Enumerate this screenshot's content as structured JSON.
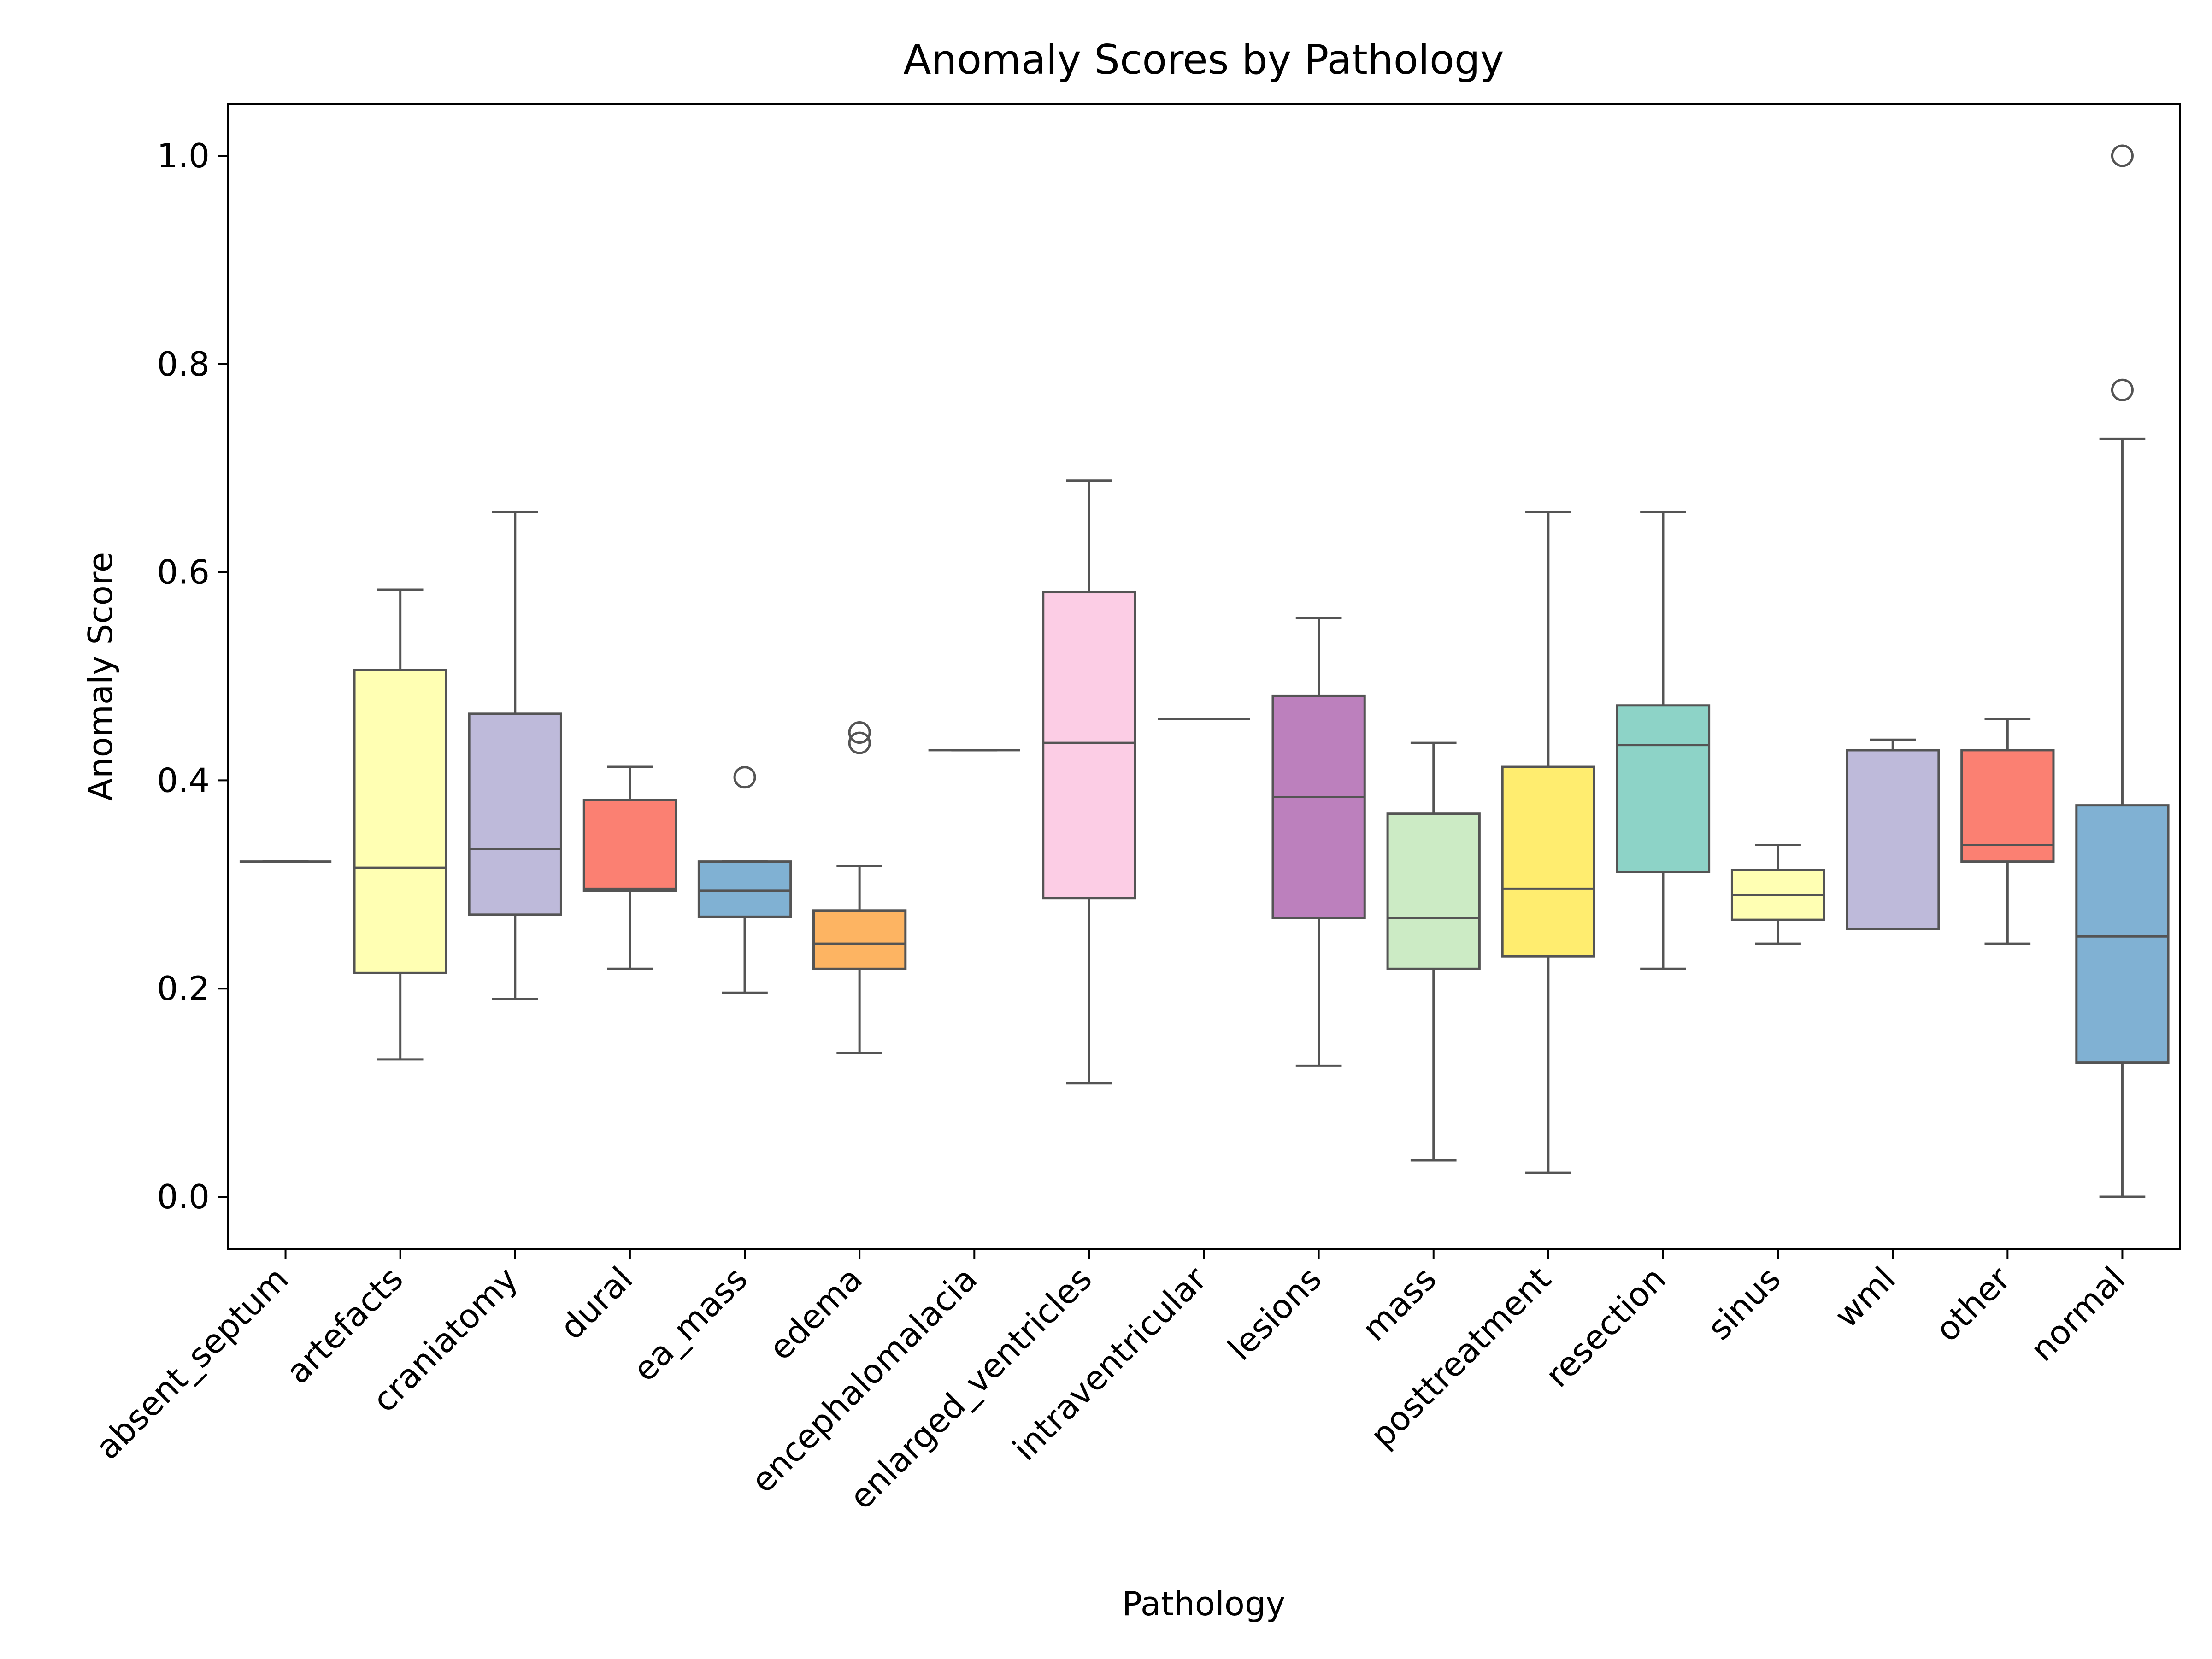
{
  "chart_data": {
    "type": "box",
    "title": "Anomaly Scores by Pathology",
    "xlabel": "Pathology",
    "ylabel": "Anomaly Score",
    "ylim": [
      -0.05,
      1.05
    ],
    "yticks": [
      0.0,
      0.2,
      0.4,
      0.6,
      0.8,
      1.0
    ],
    "grid": false,
    "legend": "none",
    "categories": [
      {
        "name": "absent_septum",
        "whisker_low": 0.322,
        "q1": 0.322,
        "median": 0.322,
        "q3": 0.322,
        "whisker_high": 0.322,
        "outliers": [],
        "color": "#8dd3c7"
      },
      {
        "name": "artefacts",
        "whisker_low": 0.132,
        "q1": 0.215,
        "median": 0.316,
        "q3": 0.506,
        "whisker_high": 0.583,
        "outliers": [],
        "color": "#ffffb3"
      },
      {
        "name": "craniatomy",
        "whisker_low": 0.19,
        "q1": 0.271,
        "median": 0.334,
        "q3": 0.464,
        "whisker_high": 0.658,
        "outliers": [],
        "color": "#bebada"
      },
      {
        "name": "dural",
        "whisker_low": 0.219,
        "q1": 0.294,
        "median": 0.296,
        "q3": 0.381,
        "whisker_high": 0.413,
        "outliers": [],
        "color": "#fb8072"
      },
      {
        "name": "ea_mass",
        "whisker_low": 0.196,
        "q1": 0.269,
        "median": 0.294,
        "q3": 0.322,
        "whisker_high": 0.322,
        "outliers": [
          0.403
        ],
        "color": "#80b1d3"
      },
      {
        "name": "edema",
        "whisker_low": 0.138,
        "q1": 0.219,
        "median": 0.243,
        "q3": 0.275,
        "whisker_high": 0.318,
        "outliers": [
          0.436,
          0.446
        ],
        "color": "#fdb462"
      },
      {
        "name": "encephalomalacia",
        "whisker_low": 0.429,
        "q1": 0.429,
        "median": 0.429,
        "q3": 0.429,
        "whisker_high": 0.429,
        "outliers": [],
        "color": "#b3de69"
      },
      {
        "name": "enlarged_ventricles",
        "whisker_low": 0.109,
        "q1": 0.287,
        "median": 0.436,
        "q3": 0.581,
        "whisker_high": 0.688,
        "outliers": [],
        "color": "#fccde5"
      },
      {
        "name": "intraventricular",
        "whisker_low": 0.459,
        "q1": 0.459,
        "median": 0.459,
        "q3": 0.459,
        "whisker_high": 0.459,
        "outliers": [],
        "color": "#d9d9d9"
      },
      {
        "name": "lesions",
        "whisker_low": 0.126,
        "q1": 0.268,
        "median": 0.384,
        "q3": 0.481,
        "whisker_high": 0.556,
        "outliers": [],
        "color": "#bc80bd"
      },
      {
        "name": "mass",
        "whisker_low": 0.035,
        "q1": 0.219,
        "median": 0.268,
        "q3": 0.368,
        "whisker_high": 0.436,
        "outliers": [],
        "color": "#ccebc5"
      },
      {
        "name": "posttreatment",
        "whisker_low": 0.023,
        "q1": 0.231,
        "median": 0.296,
        "q3": 0.413,
        "whisker_high": 0.658,
        "outliers": [],
        "color": "#ffed6f"
      },
      {
        "name": "resection",
        "whisker_low": 0.219,
        "q1": 0.312,
        "median": 0.434,
        "q3": 0.472,
        "whisker_high": 0.658,
        "outliers": [],
        "color": "#8dd3c7"
      },
      {
        "name": "sinus",
        "whisker_low": 0.243,
        "q1": 0.266,
        "median": 0.29,
        "q3": 0.314,
        "whisker_high": 0.338,
        "outliers": [],
        "color": "#ffffb3"
      },
      {
        "name": "wml",
        "whisker_low": 0.257,
        "q1": 0.257,
        "median": 0.429,
        "q3": 0.429,
        "whisker_high": 0.439,
        "outliers": [],
        "color": "#bebada"
      },
      {
        "name": "other",
        "whisker_low": 0.243,
        "q1": 0.322,
        "median": 0.338,
        "q3": 0.429,
        "whisker_high": 0.459,
        "outliers": [],
        "color": "#fb8072"
      },
      {
        "name": "normal",
        "whisker_low": 0.0,
        "q1": 0.129,
        "median": 0.25,
        "q3": 0.376,
        "whisker_high": 0.728,
        "outliers": [
          0.775,
          1.0
        ],
        "color": "#80b1d3"
      }
    ]
  }
}
